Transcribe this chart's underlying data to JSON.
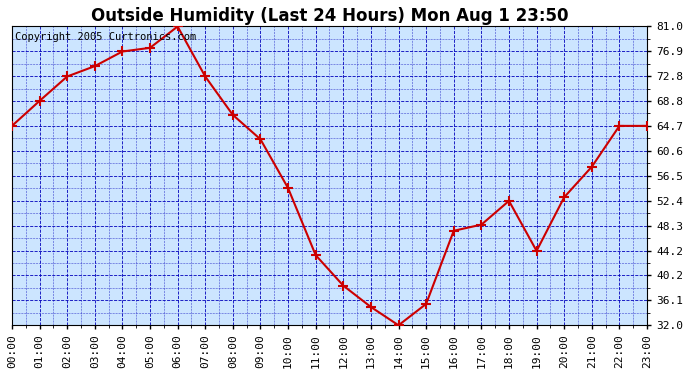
{
  "title": "Outside Humidity (Last 24 Hours) Mon Aug 1 23:50",
  "copyright": "Copyright 2005 Curtronics.com",
  "hours": [
    0,
    1,
    2,
    3,
    4,
    5,
    6,
    7,
    8,
    9,
    10,
    11,
    12,
    13,
    14,
    15,
    16,
    17,
    18,
    19,
    20,
    21,
    22,
    23
  ],
  "x_labels": [
    "00:00",
    "01:00",
    "02:00",
    "03:00",
    "04:00",
    "05:00",
    "06:00",
    "07:00",
    "08:00",
    "09:00",
    "10:00",
    "11:00",
    "12:00",
    "13:00",
    "14:00",
    "15:00",
    "16:00",
    "17:00",
    "18:00",
    "19:00",
    "20:00",
    "21:00",
    "22:00",
    "23:00"
  ],
  "humidity": [
    64.7,
    68.8,
    72.8,
    74.5,
    76.9,
    77.5,
    81.0,
    72.8,
    66.5,
    62.5,
    54.5,
    43.5,
    38.5,
    35.0,
    32.0,
    35.5,
    47.5,
    48.5,
    52.4,
    44.2,
    53.0,
    58.0,
    64.7,
    64.7
  ],
  "ylim": [
    32.0,
    81.0
  ],
  "yticks": [
    32.0,
    36.1,
    40.2,
    44.2,
    48.3,
    52.4,
    56.5,
    60.6,
    64.7,
    68.8,
    72.8,
    76.9,
    81.0
  ],
  "line_color": "#cc0000",
  "marker_color": "#cc0000",
  "bg_color": "#cce5ff",
  "fig_bg_color": "#ffffff",
  "grid_color": "#0000bb",
  "border_color": "#000000",
  "title_color": "#000000",
  "copyright_color": "#000000",
  "title_fontsize": 12,
  "tick_fontsize": 8,
  "copyright_fontsize": 7.5
}
